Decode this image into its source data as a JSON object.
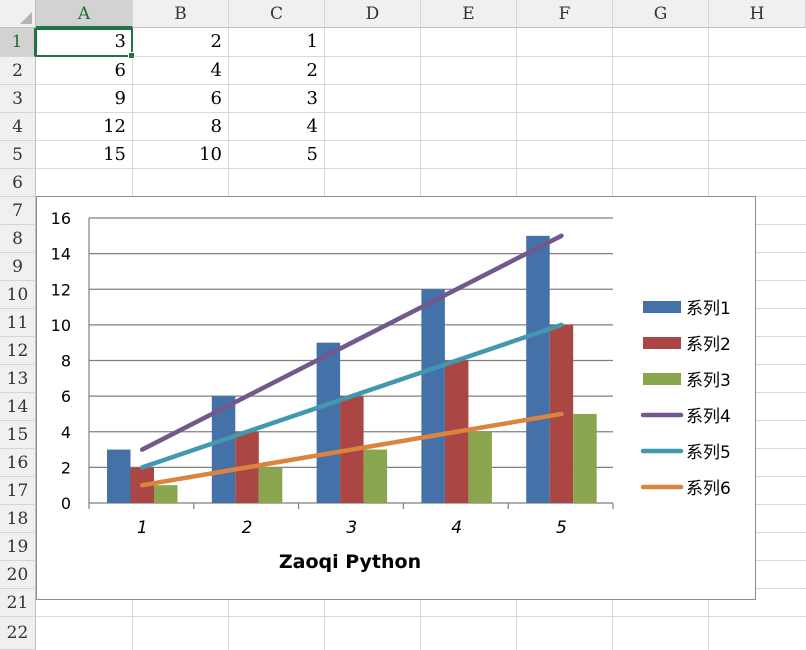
{
  "sheet": {
    "columns": [
      "A",
      "B",
      "C",
      "D",
      "E",
      "F",
      "G",
      "H"
    ],
    "rows": [
      "1",
      "2",
      "3",
      "4",
      "5",
      "6",
      "7",
      "8",
      "9",
      "10",
      "11",
      "12",
      "13",
      "14",
      "15",
      "16",
      "17",
      "18",
      "19",
      "20",
      "21",
      "22"
    ],
    "selected_column": "A",
    "selected_row": "1",
    "cells": [
      [
        "3",
        "2",
        "1"
      ],
      [
        "6",
        "4",
        "2"
      ],
      [
        "9",
        "6",
        "3"
      ],
      [
        "12",
        "8",
        "4"
      ],
      [
        "15",
        "10",
        "5"
      ]
    ]
  },
  "chart_data": {
    "type": "bar",
    "title": "",
    "xlabel": "Zaoqi Python",
    "ylabel": "",
    "categories": [
      "1",
      "2",
      "3",
      "4",
      "5"
    ],
    "ylim": [
      0,
      16
    ],
    "yticks": [
      "0",
      "2",
      "4",
      "6",
      "8",
      "10",
      "12",
      "14",
      "16"
    ],
    "grid": true,
    "legend_position": "right",
    "series": [
      {
        "name": "系列1",
        "kind": "bar",
        "color": "#4472a8",
        "values": [
          3,
          6,
          9,
          12,
          15
        ]
      },
      {
        "name": "系列2",
        "kind": "bar",
        "color": "#aa4643",
        "values": [
          2,
          4,
          6,
          8,
          10
        ]
      },
      {
        "name": "系列3",
        "kind": "bar",
        "color": "#89a54e",
        "values": [
          1,
          2,
          3,
          4,
          5
        ]
      },
      {
        "name": "系列4",
        "kind": "line",
        "color": "#71588f",
        "values": [
          3,
          6,
          9,
          12,
          15
        ]
      },
      {
        "name": "系列5",
        "kind": "line",
        "color": "#4198af",
        "values": [
          2,
          4,
          6,
          8,
          10
        ]
      },
      {
        "name": "系列6",
        "kind": "line",
        "color": "#db843d",
        "values": [
          1,
          2,
          3,
          4,
          5
        ]
      }
    ]
  }
}
